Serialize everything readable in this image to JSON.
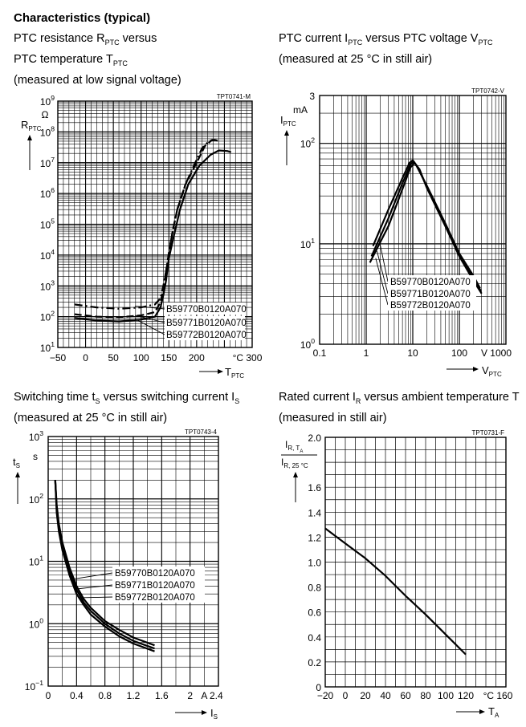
{
  "page": {
    "heading": "Characteristics (typical)"
  },
  "captions": [
    {
      "lines": [
        [
          {
            "t": "PTC resistance R"
          },
          {
            "sub": "PTC"
          },
          {
            "t": " versus"
          }
        ],
        [
          {
            "t": "PTC temperature T"
          },
          {
            "sub": "PTC"
          }
        ],
        [
          {
            "t": "(measured at low signal voltage)"
          }
        ]
      ]
    },
    {
      "lines": [
        [
          {
            "t": "PTC current I"
          },
          {
            "sub": "PTC"
          },
          {
            "t": " versus PTC voltage V"
          },
          {
            "sub": "PTC"
          }
        ],
        [
          {
            "t": "(measured at 25 °C in still air)"
          }
        ]
      ]
    },
    {
      "lines": [
        [
          {
            "t": "Switching time t"
          },
          {
            "sub": "S"
          },
          {
            "t": " versus switching current I"
          },
          {
            "sub": "S"
          }
        ],
        [
          {
            "t": "(measured at 25 °C in still air)"
          }
        ]
      ]
    },
    {
      "lines": [
        [
          {
            "t": "Rated current I"
          },
          {
            "sub": "R"
          },
          {
            "t": " versus ambient temperature T"
          }
        ],
        [
          {
            "t": "(measured in still air)"
          }
        ]
      ]
    }
  ],
  "chart_data": [
    {
      "type": "line",
      "code": "TPT0741-M",
      "xlim": [
        -50,
        300
      ],
      "ylim": [
        10,
        1000000000
      ],
      "yscale": "log",
      "xticks": [
        "−50",
        "0",
        "50",
        "100",
        "150",
        "200",
        "°C 300"
      ],
      "yticks": [
        {
          "base": "10",
          "exp": "1"
        },
        {
          "base": "10",
          "exp": "2"
        },
        {
          "base": "10",
          "exp": "3"
        },
        {
          "base": "10",
          "exp": "4"
        },
        {
          "base": "10",
          "exp": "5"
        },
        {
          "base": "10",
          "exp": "6"
        },
        {
          "base": "10",
          "exp": "7"
        },
        {
          "base": "10",
          "exp": "8"
        },
        {
          "base": "10",
          "exp": "9"
        }
      ],
      "yunit": "Ω",
      "ylabel": {
        "main": "R",
        "sub": "PTC"
      },
      "xlabel": {
        "main": "T",
        "sub": "PTC"
      },
      "series": [
        {
          "name": "B59770B0120A070",
          "style": "dashdot",
          "points": [
            [
              -20,
              250
            ],
            [
              20,
              200
            ],
            [
              60,
              180
            ],
            [
              100,
              200
            ],
            [
              125,
              250
            ],
            [
              135,
              400
            ],
            [
              140,
              1000
            ],
            [
              145,
              3000
            ],
            [
              150,
              12000
            ],
            [
              157,
              60000
            ],
            [
              165,
              300000
            ],
            [
              180,
              2000000
            ],
            [
              195,
              8000000
            ],
            [
              210,
              30000000
            ],
            [
              222,
              50000000
            ],
            [
              232,
              55000000
            ],
            [
              240,
              50000000
            ]
          ]
        },
        {
          "name": "B59771B0120A070",
          "style": "dashed",
          "points": [
            [
              -20,
              120
            ],
            [
              20,
              100
            ],
            [
              60,
              95
            ],
            [
              100,
              110
            ],
            [
              125,
              140
            ],
            [
              135,
              300
            ],
            [
              140,
              800
            ],
            [
              145,
              3000
            ],
            [
              150,
              10000
            ],
            [
              156,
              50000
            ],
            [
              165,
              300000
            ],
            [
              180,
              2000000
            ],
            [
              200,
              10000000
            ],
            [
              215,
              35000000
            ],
            [
              228,
              55000000
            ],
            [
              237,
              52000000
            ]
          ]
        },
        {
          "name": "B59772B0120A070",
          "style": "solid",
          "points": [
            [
              -20,
              90
            ],
            [
              20,
              75
            ],
            [
              60,
              70
            ],
            [
              100,
              80
            ],
            [
              125,
              100
            ],
            [
              135,
              200
            ],
            [
              140,
              500
            ],
            [
              145,
              1500
            ],
            [
              150,
              8000
            ],
            [
              160,
              50000
            ],
            [
              170,
              300000
            ],
            [
              185,
              2000000
            ],
            [
              205,
              8000000
            ],
            [
              225,
              18000000
            ],
            [
              240,
              25000000
            ],
            [
              255,
              24000000
            ],
            [
              262,
              22000000
            ]
          ]
        }
      ]
    },
    {
      "type": "line",
      "code": "TPT0742-V",
      "xlim": [
        0.1,
        1000
      ],
      "ylim": [
        1,
        300
      ],
      "xscale": "log",
      "yscale": "log",
      "xticks": [
        "0.1",
        "1",
        "10",
        "100",
        "V  1000"
      ],
      "yticks": [
        {
          "base": "10",
          "exp": "0"
        },
        {
          "base": "10",
          "exp": "1"
        },
        {
          "base": "10",
          "exp": "2"
        },
        {
          "base": "3",
          "exp": ""
        }
      ],
      "yunit": "mA",
      "ylabel": {
        "main": "I",
        "sub": "PTC"
      },
      "xlabel": {
        "main": "V",
        "sub": "PTC"
      },
      "series": [
        {
          "name": "B59770B0120A070",
          "style": "solid",
          "points": [
            [
              1.4,
              9.5
            ],
            [
              3,
              22
            ],
            [
              6,
              45
            ],
            [
              8.5,
              64
            ],
            [
              10,
              68
            ],
            [
              12,
              60
            ],
            [
              20,
              38
            ],
            [
              50,
              16
            ],
            [
              100,
              8
            ],
            [
              200,
              4.8
            ],
            [
              280,
              3.6
            ]
          ]
        },
        {
          "name": "B59771B0120A070",
          "style": "solid",
          "points": [
            [
              1.3,
              7.5
            ],
            [
              3,
              18
            ],
            [
              6,
              40
            ],
            [
              9,
              62
            ],
            [
              10.5,
              66
            ],
            [
              13,
              57
            ],
            [
              20,
              37
            ],
            [
              50,
              15.5
            ],
            [
              100,
              7.8
            ],
            [
              200,
              4.5
            ],
            [
              290,
              3.4
            ]
          ]
        },
        {
          "name": "B59772B0120A070",
          "style": "solid",
          "points": [
            [
              1.2,
              6.5
            ],
            [
              3,
              15
            ],
            [
              6,
              35
            ],
            [
              9,
              58
            ],
            [
              11,
              64
            ],
            [
              14,
              55
            ],
            [
              20,
              36
            ],
            [
              50,
              15
            ],
            [
              100,
              7.5
            ],
            [
              200,
              4.3
            ],
            [
              300,
              3.2
            ]
          ]
        }
      ]
    },
    {
      "type": "line",
      "code": "TPT0743-4",
      "xlim": [
        0,
        2.4
      ],
      "ylim": [
        0.1,
        1000
      ],
      "yscale": "log",
      "xticks": [
        "0",
        "0.4",
        "0.8",
        "1.2",
        "1.6",
        "2",
        "A  2.4"
      ],
      "yticks": [
        {
          "base": "10",
          "exp": "−1"
        },
        {
          "base": "10",
          "exp": "0"
        },
        {
          "base": "10",
          "exp": "1"
        },
        {
          "base": "10",
          "exp": "2"
        },
        {
          "base": "10",
          "exp": "3"
        }
      ],
      "yunit": "s",
      "ylabel": {
        "main": "t",
        "sub": "S"
      },
      "xlabel": {
        "main": "I",
        "sub": "S"
      },
      "series": [
        {
          "name": "B59770B0120A070",
          "style": "solid",
          "points": [
            [
              0.1,
              200
            ],
            [
              0.12,
              80
            ],
            [
              0.15,
              40
            ],
            [
              0.2,
              20
            ],
            [
              0.3,
              8
            ],
            [
              0.4,
              4
            ],
            [
              0.5,
              2.5
            ],
            [
              0.6,
              1.8
            ],
            [
              0.8,
              1.1
            ],
            [
              1.0,
              0.8
            ],
            [
              1.2,
              0.6
            ],
            [
              1.5,
              0.45
            ]
          ]
        },
        {
          "name": "B59771B0120A070",
          "style": "solid",
          "points": [
            [
              0.1,
              200
            ],
            [
              0.12,
              70
            ],
            [
              0.15,
              35
            ],
            [
              0.2,
              17
            ],
            [
              0.3,
              7
            ],
            [
              0.4,
              3.5
            ],
            [
              0.5,
              2.2
            ],
            [
              0.6,
              1.6
            ],
            [
              0.8,
              1.0
            ],
            [
              1.0,
              0.7
            ],
            [
              1.2,
              0.53
            ],
            [
              1.5,
              0.4
            ]
          ]
        },
        {
          "name": "B59772B0120A070",
          "style": "solid",
          "points": [
            [
              0.1,
              200
            ],
            [
              0.12,
              60
            ],
            [
              0.15,
              30
            ],
            [
              0.2,
              15
            ],
            [
              0.3,
              6
            ],
            [
              0.4,
              3
            ],
            [
              0.5,
              2
            ],
            [
              0.6,
              1.4
            ],
            [
              0.8,
              0.9
            ],
            [
              1.0,
              0.63
            ],
            [
              1.2,
              0.48
            ],
            [
              1.5,
              0.36
            ]
          ]
        }
      ]
    },
    {
      "type": "line",
      "code": "TPT0731-F",
      "xlim": [
        -20,
        160
      ],
      "ylim": [
        0,
        2.0
      ],
      "xticks": [
        "−20",
        "0",
        "20",
        "40",
        "60",
        "80",
        "100",
        "120",
        "°C 160"
      ],
      "yticks": [
        "0",
        "0.2",
        "0.4",
        "0.6",
        "0.8",
        "1.0",
        "1.2",
        "1.4",
        "1.6",
        "2.0"
      ],
      "ylabel": {
        "num_main": "I",
        "num_sub": "R, T",
        "num_subsub": "A",
        "den_main": "I",
        "den_sub": "R, 25 °C"
      },
      "xlabel": {
        "main": "T",
        "sub": "A"
      },
      "series": [
        {
          "name": "",
          "style": "solid",
          "points": [
            [
              -20,
              1.27
            ],
            [
              0,
              1.15
            ],
            [
              20,
              1.03
            ],
            [
              40,
              0.89
            ],
            [
              60,
              0.73
            ],
            [
              80,
              0.58
            ],
            [
              100,
              0.42
            ],
            [
              120,
              0.26
            ]
          ]
        }
      ]
    }
  ]
}
